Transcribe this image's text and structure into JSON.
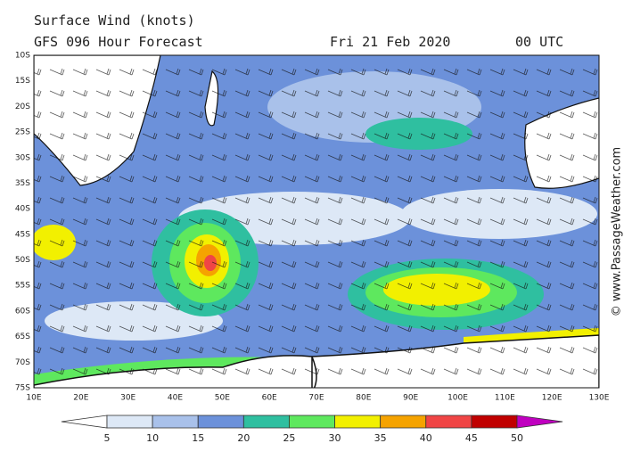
{
  "header": {
    "title": "Surface Wind (knots)",
    "subtitle": "GFS 096 Hour Forecast",
    "date": "Fri 21 Feb 2020",
    "time": "00 UTC"
  },
  "credit": "© www.PassageWeather.com",
  "map": {
    "latitudes": [
      "10S",
      "15S",
      "20S",
      "25S",
      "30S",
      "35S",
      "40S",
      "45S",
      "50S",
      "55S",
      "60S",
      "65S",
      "70S",
      "75S"
    ],
    "longitudes": [
      "10E",
      "20E",
      "30E",
      "40E",
      "50E",
      "60E",
      "70E",
      "80E",
      "90E",
      "100E",
      "110E",
      "120E",
      "130E"
    ]
  },
  "colorbar": {
    "ticks": [
      5,
      10,
      15,
      20,
      25,
      30,
      35,
      40,
      45,
      50
    ],
    "colors": [
      "#ffffff",
      "#dde8f6",
      "#a9c1ea",
      "#6c91da",
      "#2fbfa0",
      "#5ee85e",
      "#f2f000",
      "#f5a300",
      "#f04545",
      "#c00000",
      "#c000c0"
    ]
  }
}
